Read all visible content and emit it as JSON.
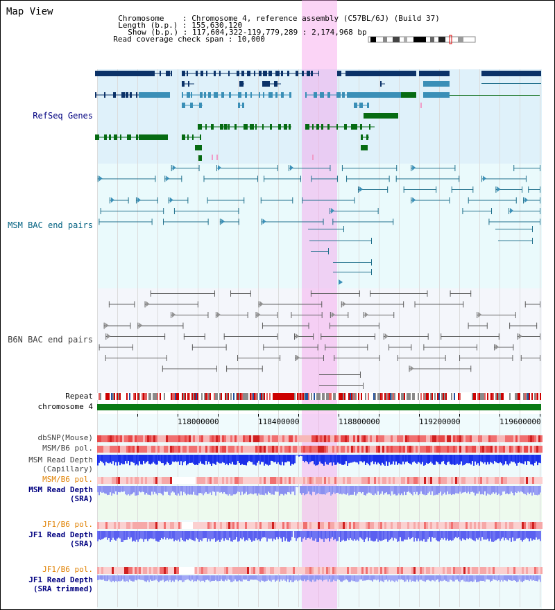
{
  "panel_title": "Map View",
  "info": {
    "chromosome_label": "Chromosome    ",
    "chromosome_value": "Chromosome 4, reference assembly (C57BL/6J) (Build 37)",
    "length_label": "Length (b.p.)",
    "length_value": "155,630,120",
    "show_label": "Show (b.p.)",
    "show_value": "117,604,322-119,779,289 : 2,174,968 bp",
    "coverage_label": "Read coverage check span",
    "coverage_value": "10,000"
  },
  "tracks": {
    "refseq": "RefSeq Genes",
    "msm_bac": "MSM BAC end pairs",
    "b6n_bac": "B6N BAC end pairs",
    "repeat": "Repeat",
    "chromosome": "chromosome 4",
    "dbsnp": "dbSNP(Mouse)",
    "msm_b6_pol_1": "MSM/B6 pol.",
    "msm_read_depth_cap_1": "MSM Read Depth",
    "msm_read_depth_cap_2": "(Capillary)",
    "msm_b6_pol_2": "MSM/B6 pol.",
    "msm_read_depth_sra_1": "MSM Read Depth",
    "msm_read_depth_sra_2": "(SRA)",
    "jf1_b6_pol_1": "JF1/B6 pol.",
    "jf1_read_depth_sra_1": "JF1 Read Depth",
    "jf1_read_depth_sra_2": "(SRA)",
    "jf1_b6_pol_2": "JF1/B6 pol.",
    "jf1_read_depth_trim_1": "JF1 Read Depth",
    "jf1_read_depth_trim_2": "(SRA trimmed)"
  },
  "axis_ticks": [
    "118000000",
    "118400000",
    "118800000",
    "119200000",
    "119600000"
  ],
  "colors": {
    "refseq_bg": "#dff1fa",
    "msm_bg": "#eafafc",
    "b6n_bg": "#f4f6fb",
    "highlight": "#f6a0ea",
    "refseq_dark": "#0b3268",
    "refseq_mid": "#3a8fb7",
    "refseq_green": "#066b12",
    "msm_line": "#1f6f8b",
    "b6n_line": "#606060",
    "label_blue": "#000080",
    "label_orange": "#e08000",
    "label_teal": "#006080"
  }
}
